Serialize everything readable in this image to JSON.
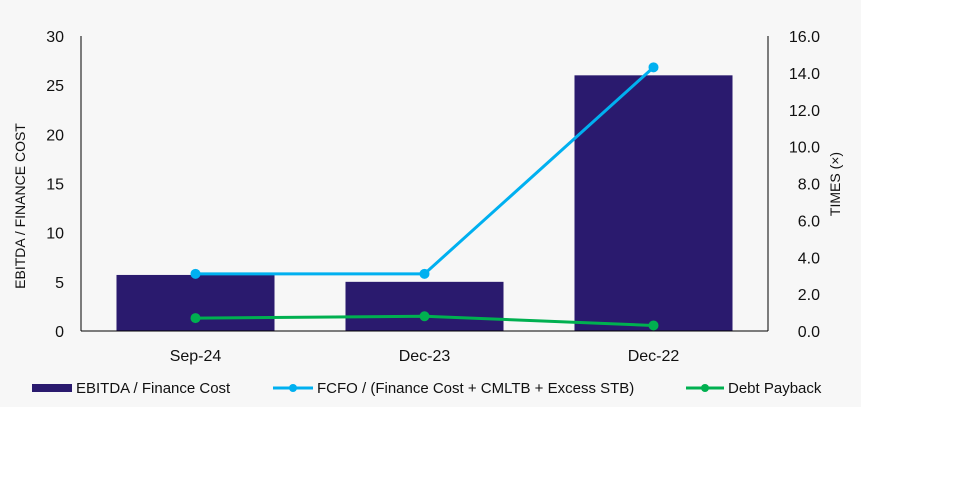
{
  "chart_data": {
    "type": "bar",
    "categories": [
      "Sep-24",
      "Dec-23",
      "Dec-22"
    ],
    "series": [
      {
        "name": "EBITDA / Finance Cost",
        "type": "bar",
        "axis": "left",
        "values": [
          5.7,
          5.0,
          26.0
        ],
        "color": "#2a1a6e"
      },
      {
        "name": "FCFO / (Finance Cost + CMLTB + Excess STB)",
        "type": "line",
        "axis": "right",
        "values": [
          3.1,
          3.1,
          14.3
        ],
        "color": "#00b0f0"
      },
      {
        "name": "Debt Payback",
        "type": "line",
        "axis": "right",
        "values": [
          0.7,
          0.8,
          0.3
        ],
        "color": "#00b050"
      }
    ],
    "ylabel": "EBITDA / FINANCE COST",
    "ylabel_right": "TIMES (×)",
    "ylim": [
      0,
      30
    ],
    "ylim_right": [
      0,
      16
    ],
    "yticks": [
      "0",
      "5",
      "10",
      "15",
      "20",
      "25",
      "30"
    ],
    "yticks_right": [
      "0.0",
      "2.0",
      "4.0",
      "6.0",
      "8.0",
      "10.0",
      "12.0",
      "14.0",
      "16.0"
    ],
    "grid": false,
    "legend_position": "bottom"
  }
}
